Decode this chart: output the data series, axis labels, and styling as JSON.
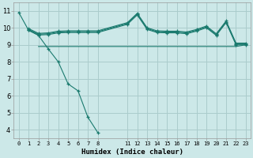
{
  "xlabel": "Humidex (Indice chaleur)",
  "background_color": "#cce8e8",
  "grid_color": "#aacccc",
  "line_color": "#1a7a6e",
  "ylim": [
    3.5,
    11.5
  ],
  "yticks": [
    4,
    5,
    6,
    7,
    8,
    9,
    10,
    11
  ],
  "xlim": [
    -0.5,
    23.5
  ],
  "x_tick_positions": [
    0,
    1,
    2,
    3,
    4,
    5,
    6,
    7,
    8,
    11,
    12,
    13,
    14,
    15,
    16,
    17,
    18,
    19,
    20,
    21,
    22,
    23
  ],
  "x_tick_labels": [
    "0",
    "1",
    "2",
    "3",
    "4",
    "5",
    "6",
    "7",
    "8",
    "11",
    "12",
    "13",
    "14",
    "15",
    "16",
    "17",
    "18",
    "19",
    "20",
    "21",
    "22",
    "23"
  ],
  "series": [
    {
      "x": [
        0,
        1,
        2,
        3,
        4,
        5,
        6,
        7,
        8
      ],
      "y": [
        10.9,
        9.85,
        9.55,
        8.75,
        8.0,
        6.7,
        6.3,
        4.75,
        3.85
      ],
      "marker": true
    },
    {
      "x": [
        2,
        3,
        4,
        5,
        6,
        7,
        8,
        11,
        12,
        13,
        14,
        15,
        16,
        17,
        18,
        19,
        20,
        21,
        22,
        23
      ],
      "y": [
        8.9,
        8.9,
        8.9,
        8.9,
        8.9,
        8.9,
        8.9,
        8.9,
        8.9,
        8.9,
        8.9,
        8.9,
        8.9,
        8.9,
        8.9,
        8.9,
        8.9,
        8.9,
        8.9,
        9.0
      ],
      "marker": false
    },
    {
      "x": [
        1,
        2,
        3,
        4,
        5,
        6,
        7,
        8,
        11,
        12,
        13,
        14,
        15,
        16,
        17,
        18,
        19,
        20,
        21,
        22,
        23
      ],
      "y": [
        9.85,
        9.57,
        9.6,
        9.7,
        9.72,
        9.72,
        9.72,
        9.72,
        10.2,
        10.75,
        9.9,
        9.72,
        9.7,
        9.7,
        9.65,
        9.8,
        10.0,
        9.55,
        10.3,
        9.0,
        9.0
      ],
      "marker": true
    },
    {
      "x": [
        1,
        2,
        3,
        4,
        5,
        6,
        7,
        8,
        11,
        12,
        13,
        14,
        15,
        16,
        17,
        18,
        19,
        20,
        21,
        22,
        23
      ],
      "y": [
        9.9,
        9.62,
        9.65,
        9.75,
        9.77,
        9.77,
        9.77,
        9.77,
        10.25,
        10.8,
        9.95,
        9.77,
        9.75,
        9.75,
        9.7,
        9.85,
        10.05,
        9.6,
        10.35,
        9.05,
        9.05
      ],
      "marker": true
    },
    {
      "x": [
        1,
        2,
        3,
        4,
        5,
        6,
        7,
        8,
        11,
        12,
        13,
        14,
        15,
        16,
        17,
        18,
        19,
        20,
        21,
        22,
        23
      ],
      "y": [
        9.95,
        9.67,
        9.7,
        9.8,
        9.82,
        9.82,
        9.82,
        9.82,
        10.3,
        10.85,
        10.0,
        9.82,
        9.8,
        9.8,
        9.75,
        9.9,
        10.1,
        9.65,
        10.4,
        9.1,
        9.1
      ],
      "marker": true
    }
  ]
}
